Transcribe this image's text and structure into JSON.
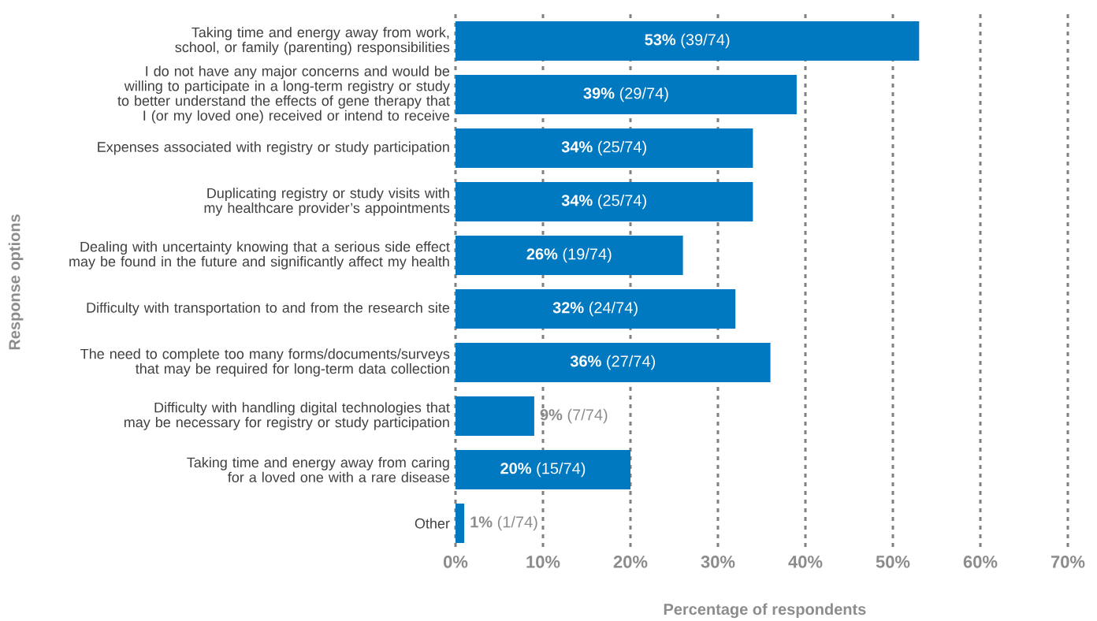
{
  "chart_data": {
    "type": "bar",
    "orientation": "horizontal",
    "xlabel": "Percentage of respondents",
    "ylabel": "Response options",
    "categories": [
      "Taking time and energy away from work, school, or family (parenting) responsibilities",
      "I do not have any major concerns and would be willing to participate in a long-term registry or study to better understand the effects of gene therapy that I (or my loved one) received or intend to receive",
      "Expenses associated with registry or study participation",
      "Duplicating registry or study visits with my healthcare provider’s appointments",
      "Dealing with uncertainty knowing that a serious side effect may be found in the future and significantly affect my health",
      "Difficulty with transportation to and from the research site",
      "The need to complete too many forms/documents/surveys that may be required for long-term data collection",
      "Difficulty with handling digital technologies that may be necessary for registry or study participation",
      "Taking time and energy away from caring for a loved one with a rare disease",
      "Other"
    ],
    "values": [
      53,
      39,
      34,
      34,
      26,
      32,
      36,
      9,
      20,
      1
    ],
    "value_labels": [
      "**53%** (39/74)",
      "**39%** (29/74)",
      "**34%** (25/74)",
      "**34%** (25/74)",
      "**26%** (19/74)",
      "**32%** (24/74)",
      "**36%** (27/74)",
      "**9%** (7/74)",
      "**20%** (15/74)",
      "**1%** (1/74)"
    ],
    "color": "#0079c1",
    "xlim": [
      0,
      70
    ],
    "xticks": [
      {
        "value": 0,
        "label": "0%"
      },
      {
        "value": 10,
        "label": "10%"
      },
      {
        "value": 20,
        "label": "20%"
      },
      {
        "value": 30,
        "label": "30%"
      },
      {
        "value": 40,
        "label": "40%"
      },
      {
        "value": 50,
        "label": "50%"
      },
      {
        "value": 60,
        "label": "60%"
      },
      {
        "value": 70,
        "label": "70%"
      }
    ],
    "grid": "x"
  }
}
